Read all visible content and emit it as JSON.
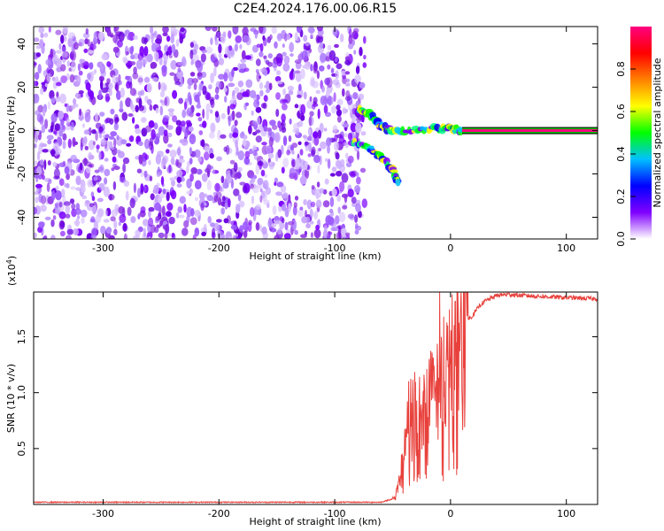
{
  "chart_data": [
    {
      "type": "heatmap",
      "title": "C2E4.2024.176.00.06.R15",
      "xlabel": "Height of straight line (km)",
      "ylabel": "Frequency (Hz)",
      "xlim": [
        -360,
        127
      ],
      "ylim": [
        -50,
        48
      ],
      "xticks": [
        -300,
        -200,
        -100,
        0,
        100
      ],
      "yticks": [
        -40,
        -20,
        0,
        20,
        40
      ],
      "colorbar": {
        "label": "Normalized spectral amplitude",
        "range": [
          0,
          1
        ],
        "ticks": [
          "0.0",
          "0.2",
          "0.4",
          "0.6",
          "0.8"
        ],
        "colors": [
          "#ffffff",
          "#8000ff",
          "#0000ff",
          "#00c0ff",
          "#00ff00",
          "#ffff00",
          "#ff8000",
          "#ff0000",
          "#ff0080"
        ]
      },
      "features": {
        "noise_region_x": [
          -360,
          -80
        ],
        "noise_color": "#8a2be2",
        "transition_x": [
          -80,
          10
        ],
        "branch_upper": [
          [
            -80,
            10
          ],
          [
            -70,
            8
          ],
          [
            -60,
            2
          ],
          [
            -50,
            0
          ],
          [
            -30,
            0
          ],
          [
            -10,
            1
          ],
          [
            0,
            1
          ],
          [
            10,
            0
          ]
        ],
        "branch_lower": [
          [
            -85,
            -5
          ],
          [
            -70,
            -8
          ],
          [
            -60,
            -12
          ],
          [
            -50,
            -18
          ],
          [
            -45,
            -24
          ]
        ],
        "carrier_line_x": [
          10,
          127
        ],
        "carrier_frequency": 0,
        "carrier_colors": [
          "#ff0080",
          "#00c000",
          "#000000"
        ]
      }
    },
    {
      "type": "line",
      "title": "",
      "xlabel": "Height of straight line (km)",
      "ylabel": "SNR (10 * v/v)",
      "scale_label": "(x10",
      "scale_exponent": "4",
      "scale_close": ")",
      "xlim": [
        -360,
        127
      ],
      "ylim": [
        0,
        1.9
      ],
      "xticks": [
        -300,
        -200,
        -100,
        0,
        100
      ],
      "ytick_labels": [
        "0.5",
        "1.0",
        "1.5"
      ],
      "ytick_values": [
        0.5,
        1.0,
        1.5
      ],
      "series": [
        {
          "color": "#e8413c",
          "x": [
            -360,
            -300,
            -200,
            -100,
            -60,
            -50,
            -45,
            -42,
            -40,
            -38,
            -35,
            -33,
            -30,
            -28,
            -25,
            -22,
            -20,
            -18,
            -15,
            -12,
            -10,
            -5,
            0,
            5,
            10,
            15,
            20,
            25,
            30,
            40,
            50,
            60,
            80,
            100,
            127
          ],
          "y": [
            0.02,
            0.02,
            0.02,
            0.02,
            0.02,
            0.05,
            0.15,
            0.35,
            0.55,
            0.7,
            0.85,
            1.0,
            0.75,
            0.9,
            0.7,
            0.95,
            0.8,
            1.0,
            0.95,
            1.1,
            1.0,
            1.2,
            1.25,
            1.45,
            1.55,
            1.65,
            1.7,
            1.78,
            1.82,
            1.87,
            1.88,
            1.87,
            1.86,
            1.85,
            1.84
          ]
        }
      ]
    }
  ]
}
